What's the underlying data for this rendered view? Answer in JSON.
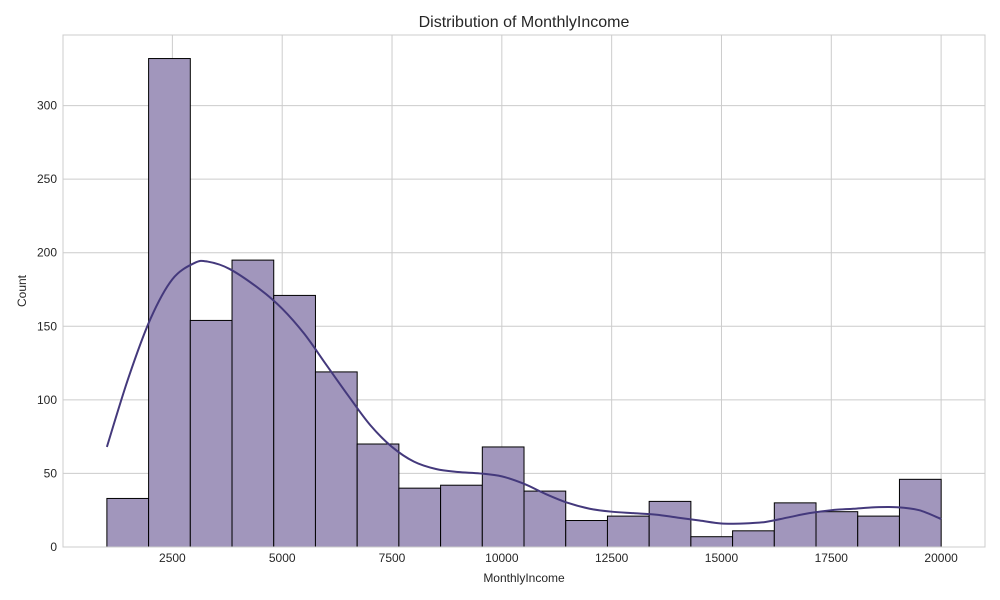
{
  "chart_data": {
    "type": "bar",
    "title": "Distribution of MonthlyIncome",
    "xlabel": "MonthlyIncome",
    "ylabel": "Count",
    "xlim": [
      10,
      20999
    ],
    "ylim": [
      0,
      348
    ],
    "grid": true,
    "bar_color": "#a196bc",
    "kde_color": "#44397c",
    "x_ticks": [
      2500,
      5000,
      7500,
      10000,
      12500,
      15000,
      17500,
      20000
    ],
    "x_tick_labels": [
      "2500",
      "5000",
      "7500",
      "10000",
      "12500",
      "15000",
      "17500",
      "20000"
    ],
    "y_ticks": [
      0,
      50,
      100,
      150,
      200,
      250,
      300
    ],
    "y_tick_labels": [
      "0",
      "50",
      "100",
      "150",
      "200",
      "250",
      "300"
    ],
    "bin_edges": [
      1009,
      1958.6,
      2908.2,
      3857.8,
      4807.4,
      5757,
      6706.6,
      7656.2,
      8605.8,
      9555.4,
      10505,
      11454.6,
      12404.2,
      13353.8,
      14303.4,
      15253,
      16202.6,
      17152.2,
      18101.8,
      19051.4,
      20001
    ],
    "values": [
      33,
      332,
      154,
      195,
      171,
      119,
      70,
      40,
      42,
      68,
      38,
      18,
      21,
      31,
      7,
      11,
      30,
      24,
      21,
      46
    ],
    "kde": {
      "x": [
        1009,
        1500,
        2000,
        2500,
        3000,
        3300,
        3800,
        4500,
        5000,
        5500,
        6000,
        6500,
        7000,
        7500,
        8000,
        8500,
        9000,
        9500,
        10000,
        10500,
        11000,
        11500,
        12000,
        12500,
        13000,
        13500,
        14000,
        14500,
        15000,
        15500,
        16000,
        16500,
        17000,
        17500,
        18000,
        18500,
        19000,
        19500,
        20001
      ],
      "y": [
        68,
        115,
        155,
        182,
        193,
        194,
        189,
        175,
        162,
        145,
        124,
        103,
        83,
        68,
        58,
        53,
        51,
        50,
        48,
        43,
        36,
        30,
        26,
        24,
        23,
        22,
        20,
        18,
        16,
        16,
        17,
        20,
        23,
        25,
        26,
        27,
        27,
        25,
        19
      ]
    }
  }
}
